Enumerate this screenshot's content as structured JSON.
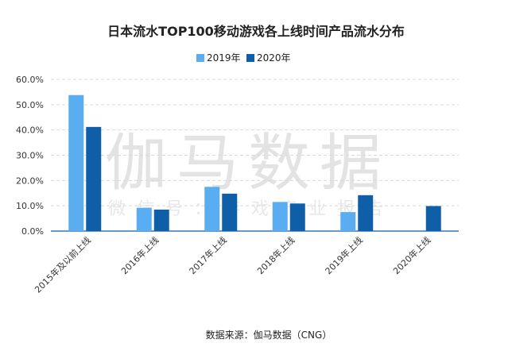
{
  "watermark": {
    "main": "伽马数据",
    "sub": "微信号：游戏产业报告"
  },
  "source": "数据来源：伽马数据（CNG）",
  "chart_data": {
    "type": "bar",
    "title": "日本流水TOP100移动游戏各上线时间产品流水分布",
    "categories": [
      "2015年及以前上线",
      "2016年上线",
      "2017年上线",
      "2018年上线",
      "2019年上线",
      "2020年上线"
    ],
    "series": [
      {
        "name": "2019年",
        "color": "#5aadf0",
        "values": [
          53.8,
          9.2,
          17.5,
          11.5,
          7.5,
          0
        ]
      },
      {
        "name": "2020年",
        "color": "#0f5ea8",
        "values": [
          41.2,
          8.5,
          14.8,
          10.9,
          14.2,
          9.9
        ]
      }
    ],
    "ylim": [
      0,
      60
    ],
    "yticks": [
      "0.0%",
      "10.0%",
      "20.0%",
      "30.0%",
      "40.0%",
      "50.0%",
      "60.0%"
    ],
    "ytick_values": [
      0,
      10,
      20,
      30,
      40,
      50,
      60
    ],
    "grid": true,
    "legend_position": "top-center"
  }
}
